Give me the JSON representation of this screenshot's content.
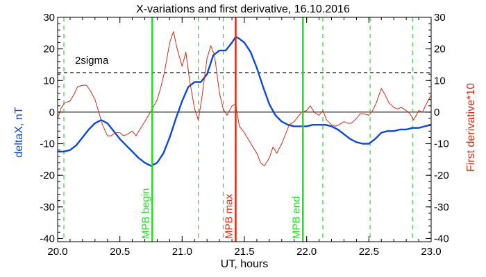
{
  "chart_data": {
    "type": "line",
    "title": "X-variations and first derivative, 16.10.2016",
    "xlabel": "UT, hours",
    "ylabel_left": "deltaX, nT",
    "ylabel_right": "First derivative*10",
    "xlim": [
      20.0,
      23.0
    ],
    "ylim": [
      -41,
      30
    ],
    "x_ticks": [
      20.0,
      20.5,
      21.0,
      21.5,
      22.0,
      22.5,
      23.0
    ],
    "x_tick_labels": [
      "20.0",
      "20.5",
      "21.0",
      "21.5",
      "22.0",
      "22.5",
      "23.0"
    ],
    "y_ticks": [
      30,
      20,
      10,
      0,
      -10,
      -20,
      -30,
      -40
    ],
    "y_tick_labels": [
      "30",
      "20",
      "10",
      "0",
      "-10",
      "-20",
      "-30",
      "-40"
    ],
    "grid": false,
    "colors": {
      "deltaX": "#0a48d8",
      "derivative": "#d42a12",
      "mpb_bounds": "#22dd22",
      "mpb_max": "#e02810",
      "dashed_green": "#22dd22",
      "zero_line": "#000000",
      "sigma_line": "#000000"
    },
    "sigma_level": {
      "label": "2sigma",
      "y": 12.5
    },
    "zero_level": 0,
    "vertical_lines": [
      {
        "x": 20.76,
        "label": "MPB begin",
        "style": "solid",
        "color": "#22dd22"
      },
      {
        "x": 21.43,
        "label": "MPB max",
        "style": "solid",
        "color": "#e02810"
      },
      {
        "x": 21.97,
        "label": "MPB end",
        "style": "solid",
        "color": "#22dd22"
      }
    ],
    "dashed_lines_x": [
      20.05,
      21.13,
      21.33,
      22.13,
      22.51,
      22.85
    ],
    "series": [
      {
        "key": "deltaX",
        "axis": "left",
        "x": [
          20.0,
          20.05,
          20.1,
          20.15,
          20.2,
          20.25,
          20.3,
          20.35,
          20.4,
          20.45,
          20.5,
          20.55,
          20.6,
          20.65,
          20.7,
          20.75,
          20.8,
          20.85,
          20.9,
          20.95,
          21.0,
          21.05,
          21.1,
          21.15,
          21.2,
          21.25,
          21.3,
          21.35,
          21.4,
          21.43,
          21.45,
          21.5,
          21.55,
          21.6,
          21.65,
          21.7,
          21.75,
          21.8,
          21.85,
          21.9,
          21.95,
          22.0,
          22.05,
          22.1,
          22.15,
          22.2,
          22.25,
          22.3,
          22.35,
          22.4,
          22.45,
          22.5,
          22.55,
          22.6,
          22.65,
          22.7,
          22.75,
          22.8,
          22.85,
          22.9,
          22.95,
          23.0
        ],
        "values": [
          -12.5,
          -12.5,
          -12.0,
          -10.5,
          -8.0,
          -5.5,
          -3.5,
          -2.5,
          -3.5,
          -6.0,
          -8.5,
          -10.5,
          -12.5,
          -14.5,
          -16.0,
          -17.0,
          -16.0,
          -13.0,
          -8.0,
          -2.0,
          3.5,
          8.0,
          9.5,
          9.5,
          12.0,
          18.0,
          19.5,
          19.5,
          22.0,
          23.8,
          23.5,
          22.0,
          19.0,
          14.0,
          8.0,
          2.5,
          -1.0,
          -3.0,
          -4.0,
          -4.5,
          -4.5,
          -4.5,
          -4.0,
          -4.0,
          -4.0,
          -4.5,
          -5.5,
          -7.0,
          -8.5,
          -9.5,
          -10.0,
          -10.0,
          -8.5,
          -6.5,
          -6.0,
          -6.0,
          -5.5,
          -5.5,
          -5.0,
          -5.0,
          -4.5,
          -4.0
        ]
      },
      {
        "key": "derivative",
        "axis": "right",
        "x": [
          20.0,
          20.03,
          20.06,
          20.1,
          20.13,
          20.16,
          20.2,
          20.23,
          20.26,
          20.3,
          20.33,
          20.36,
          20.4,
          20.43,
          20.46,
          20.5,
          20.53,
          20.56,
          20.6,
          20.63,
          20.66,
          20.7,
          20.73,
          20.76,
          20.8,
          20.83,
          20.86,
          20.9,
          20.93,
          20.96,
          21.0,
          21.03,
          21.06,
          21.1,
          21.13,
          21.16,
          21.2,
          21.23,
          21.26,
          21.3,
          21.33,
          21.36,
          21.4,
          21.43,
          21.46,
          21.5,
          21.53,
          21.56,
          21.6,
          21.63,
          21.66,
          21.7,
          21.73,
          21.76,
          21.8,
          21.83,
          21.86,
          21.9,
          21.93,
          21.96,
          22.0,
          22.03,
          22.06,
          22.1,
          22.13,
          22.16,
          22.2,
          22.23,
          22.26,
          22.3,
          22.33,
          22.36,
          22.4,
          22.43,
          22.46,
          22.5,
          22.53,
          22.56,
          22.6,
          22.63,
          22.66,
          22.7,
          22.73,
          22.76,
          22.8,
          22.83,
          22.86,
          22.9,
          22.93,
          22.96,
          23.0
        ],
        "values": [
          -2.0,
          1.5,
          3.0,
          3.5,
          5.5,
          8.0,
          8.5,
          8.5,
          7.0,
          4.0,
          0.0,
          -4.0,
          -7.5,
          -7.5,
          -6.5,
          -6.5,
          -7.5,
          -7.0,
          -6.0,
          -7.5,
          -5.5,
          -3.0,
          -1.0,
          1.0,
          4.0,
          8.0,
          13.0,
          22.0,
          25.5,
          20.0,
          14.5,
          19.0,
          10.0,
          1.0,
          -2.5,
          5.0,
          17.0,
          21.0,
          18.0,
          6.0,
          1.0,
          -1.0,
          2.0,
          2.5,
          -4.5,
          -6.5,
          -8.5,
          -10.5,
          -13.0,
          -16.0,
          -17.0,
          -14.5,
          -11.0,
          -13.0,
          -10.0,
          -7.0,
          -4.0,
          -3.0,
          -1.5,
          0.0,
          0.5,
          2.0,
          0.0,
          -1.0,
          0.5,
          -2.5,
          -4.0,
          -4.5,
          -4.0,
          -3.0,
          -3.5,
          -3.5,
          -2.0,
          -0.5,
          -0.5,
          -1.0,
          0.5,
          3.0,
          7.5,
          5.5,
          3.0,
          1.5,
          1.0,
          1.5,
          0.5,
          -0.5,
          -2.5,
          0.5,
          0.0,
          2.5,
          5.5
        ]
      }
    ]
  }
}
